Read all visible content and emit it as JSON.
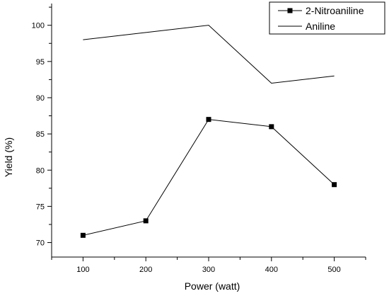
{
  "chart_data": {
    "type": "line",
    "xlabel": "Power (watt)",
    "ylabel": "Yield (%)",
    "x": [
      100,
      200,
      300,
      400,
      500
    ],
    "xlim": [
      50,
      550
    ],
    "ylim": [
      68,
      103
    ],
    "xticks": [
      100,
      200,
      300,
      400,
      500
    ],
    "yticks": [
      70,
      75,
      80,
      85,
      90,
      95,
      100
    ],
    "grid": false,
    "legend_position": "top-right",
    "series": [
      {
        "name": "2-Nitroaniline",
        "values": [
          71,
          73,
          87,
          86,
          78
        ],
        "marker": "square",
        "color": "#000000"
      },
      {
        "name": "Aniline",
        "values": [
          98,
          99,
          100,
          92,
          93
        ],
        "marker": "none",
        "color": "#000000"
      }
    ]
  }
}
